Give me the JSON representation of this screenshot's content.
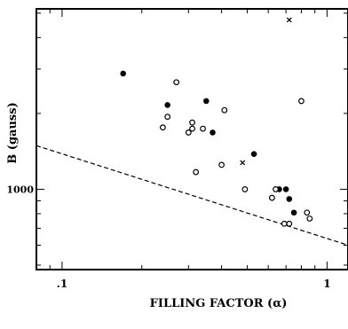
{
  "chart_data": {
    "type": "scatter",
    "title": "",
    "xlabel": "FILLING FACTOR (α)",
    "ylabel": "B (gauss)",
    "x_scale": "log",
    "y_scale": "log",
    "xlim": [
      0.08,
      1.2
    ],
    "ylim": [
      480,
      5200
    ],
    "x_ticks": [
      {
        "value": 0.1,
        "label": ".1"
      },
      {
        "value": 1,
        "label": "1"
      }
    ],
    "y_ticks": [
      {
        "value": 1000,
        "label": "1000"
      }
    ],
    "grid": false,
    "legend": "none",
    "series": [
      {
        "marker": "filled-circle",
        "points": [
          [
            0.17,
            2880
          ],
          [
            0.25,
            2160
          ],
          [
            0.35,
            2240
          ],
          [
            0.37,
            1680
          ],
          [
            0.53,
            1380
          ],
          [
            0.66,
            1000
          ],
          [
            0.7,
            1000
          ],
          [
            0.72,
            915
          ],
          [
            0.75,
            808
          ]
        ]
      },
      {
        "marker": "open-circle",
        "points": [
          [
            0.27,
            2660
          ],
          [
            0.25,
            1940
          ],
          [
            0.24,
            1760
          ],
          [
            0.31,
            1840
          ],
          [
            0.31,
            1740
          ],
          [
            0.34,
            1740
          ],
          [
            0.3,
            1680
          ],
          [
            0.41,
            2060
          ],
          [
            0.4,
            1250
          ],
          [
            0.32,
            1170
          ],
          [
            0.49,
            1000
          ],
          [
            0.64,
            1000
          ],
          [
            0.62,
            925
          ],
          [
            0.8,
            2240
          ],
          [
            0.84,
            808
          ],
          [
            0.86,
            765
          ],
          [
            0.69,
            730
          ],
          [
            0.72,
            730
          ]
        ]
      },
      {
        "marker": "cross",
        "points": [
          [
            0.72,
            4700
          ],
          [
            0.48,
            1275
          ]
        ]
      }
    ],
    "reference_lines": [
      {
        "style": "dashed",
        "points": [
          [
            0.08,
            1490
          ],
          [
            1.2,
            600
          ]
        ]
      }
    ]
  }
}
